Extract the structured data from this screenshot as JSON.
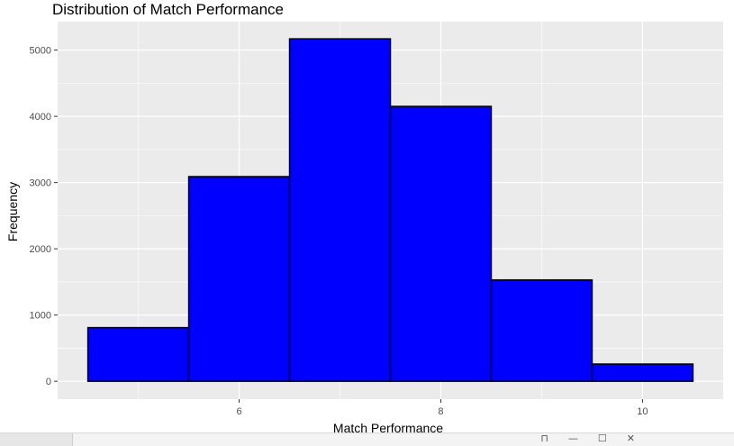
{
  "chart_data": {
    "type": "bar",
    "title": "Distribution of Match Performance",
    "xlabel": "Match Performance",
    "ylabel": "Frequency",
    "bins": [
      {
        "x0": 4.5,
        "x1": 5.5,
        "count": 810
      },
      {
        "x0": 5.5,
        "x1": 6.5,
        "count": 3090
      },
      {
        "x0": 6.5,
        "x1": 7.5,
        "count": 5170
      },
      {
        "x0": 7.5,
        "x1": 8.5,
        "count": 4150
      },
      {
        "x0": 8.5,
        "x1": 9.5,
        "count": 1530
      },
      {
        "x0": 9.5,
        "x1": 10.5,
        "count": 260
      }
    ],
    "x_ticks": [
      6,
      8,
      10
    ],
    "y_ticks": [
      0,
      1000,
      2000,
      3000,
      4000,
      5000
    ],
    "xlim": [
      4.2,
      10.8
    ],
    "ylim": [
      -270,
      5430
    ],
    "bar_fill": "#0000ff",
    "bar_outline": "#000000",
    "panel_background": "#ebebeb",
    "grid_color": "#ffffff",
    "grid": true,
    "legend": "none"
  },
  "window_controls": {
    "pin_icon": "pin-icon",
    "minimize_icon": "minimize-icon",
    "maximize_icon": "maximize-icon",
    "close_icon": "close-icon"
  }
}
